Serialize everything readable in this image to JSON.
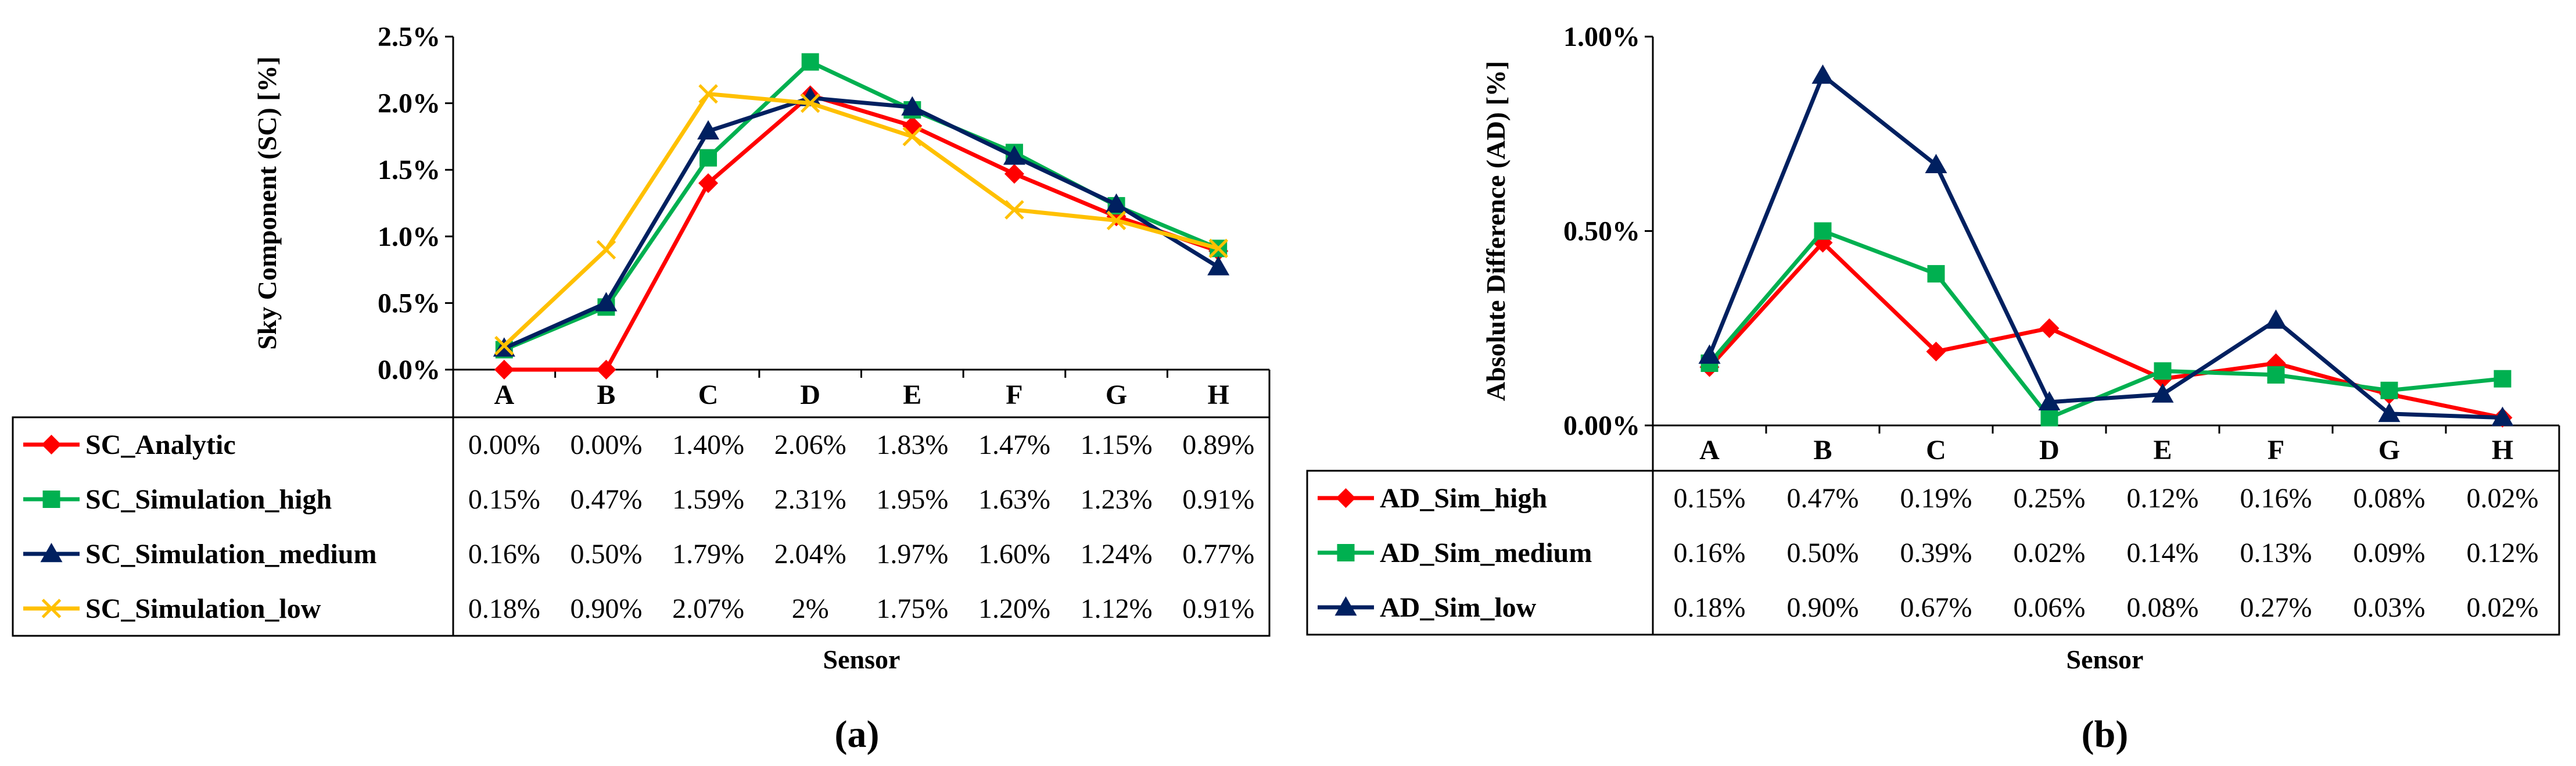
{
  "chart_data": [
    {
      "type": "line",
      "panel_label": "(a)",
      "ylabel": "Sky Component (SC) [%]",
      "xlabel": "Sensor",
      "ylim": [
        0,
        2.5
      ],
      "yticks": [
        "0.0%",
        "0.5%",
        "1.0%",
        "1.5%",
        "2.0%",
        "2.5%"
      ],
      "categories": [
        "A",
        "B",
        "C",
        "D",
        "E",
        "F",
        "G",
        "H"
      ],
      "series": [
        {
          "name": "SC_Analytic",
          "color": "#ff0000",
          "marker": "diamond",
          "values": [
            0.0,
            0.0,
            1.4,
            2.06,
            1.83,
            1.47,
            1.15,
            0.89
          ],
          "labels": [
            "0.00%",
            "0.00%",
            "1.40%",
            "2.06%",
            "1.83%",
            "1.47%",
            "1.15%",
            "0.89%"
          ]
        },
        {
          "name": "SC_Simulation_high",
          "color": "#00b050",
          "marker": "square",
          "values": [
            0.15,
            0.47,
            1.59,
            2.31,
            1.95,
            1.63,
            1.23,
            0.91
          ],
          "labels": [
            "0.15%",
            "0.47%",
            "1.59%",
            "2.31%",
            "1.95%",
            "1.63%",
            "1.23%",
            "0.91%"
          ]
        },
        {
          "name": "SC_Simulation_medium",
          "color": "#002060",
          "marker": "triangle",
          "values": [
            0.16,
            0.5,
            1.79,
            2.04,
            1.97,
            1.6,
            1.24,
            0.77
          ],
          "labels": [
            "0.16%",
            "0.50%",
            "1.79%",
            "2.04%",
            "1.97%",
            "1.60%",
            "1.24%",
            "0.77%"
          ]
        },
        {
          "name": "SC_Simulation_low",
          "color": "#ffc000",
          "marker": "x",
          "values": [
            0.18,
            0.9,
            2.07,
            2.0,
            1.75,
            1.2,
            1.12,
            0.91
          ],
          "labels": [
            "0.18%",
            "0.90%",
            "2.07%",
            "2%",
            "1.75%",
            "1.20%",
            "1.12%",
            "0.91%"
          ]
        }
      ]
    },
    {
      "type": "line",
      "panel_label": "(b)",
      "ylabel": "Absolute Difference (AD) [%]",
      "xlabel": "Sensor",
      "ylim": [
        0,
        1.0
      ],
      "yticks": [
        "0.00%",
        "0.50%",
        "1.00%"
      ],
      "categories": [
        "A",
        "B",
        "C",
        "D",
        "E",
        "F",
        "G",
        "H"
      ],
      "series": [
        {
          "name": "AD_Sim_high",
          "color": "#ff0000",
          "marker": "diamond",
          "values": [
            0.15,
            0.47,
            0.19,
            0.25,
            0.12,
            0.16,
            0.08,
            0.02
          ],
          "labels": [
            "0.15%",
            "0.47%",
            "0.19%",
            "0.25%",
            "0.12%",
            "0.16%",
            "0.08%",
            "0.02%"
          ]
        },
        {
          "name": "AD_Sim_medium",
          "color": "#00b050",
          "marker": "square",
          "values": [
            0.16,
            0.5,
            0.39,
            0.02,
            0.14,
            0.13,
            0.09,
            0.12
          ],
          "labels": [
            "0.16%",
            "0.50%",
            "0.39%",
            "0.02%",
            "0.14%",
            "0.13%",
            "0.09%",
            "0.12%"
          ]
        },
        {
          "name": "AD_Sim_low",
          "color": "#002060",
          "marker": "triangle",
          "values": [
            0.18,
            0.9,
            0.67,
            0.06,
            0.08,
            0.27,
            0.03,
            0.02
          ],
          "labels": [
            "0.18%",
            "0.90%",
            "0.67%",
            "0.06%",
            "0.08%",
            "0.27%",
            "0.03%",
            "0.02%"
          ]
        }
      ]
    }
  ]
}
